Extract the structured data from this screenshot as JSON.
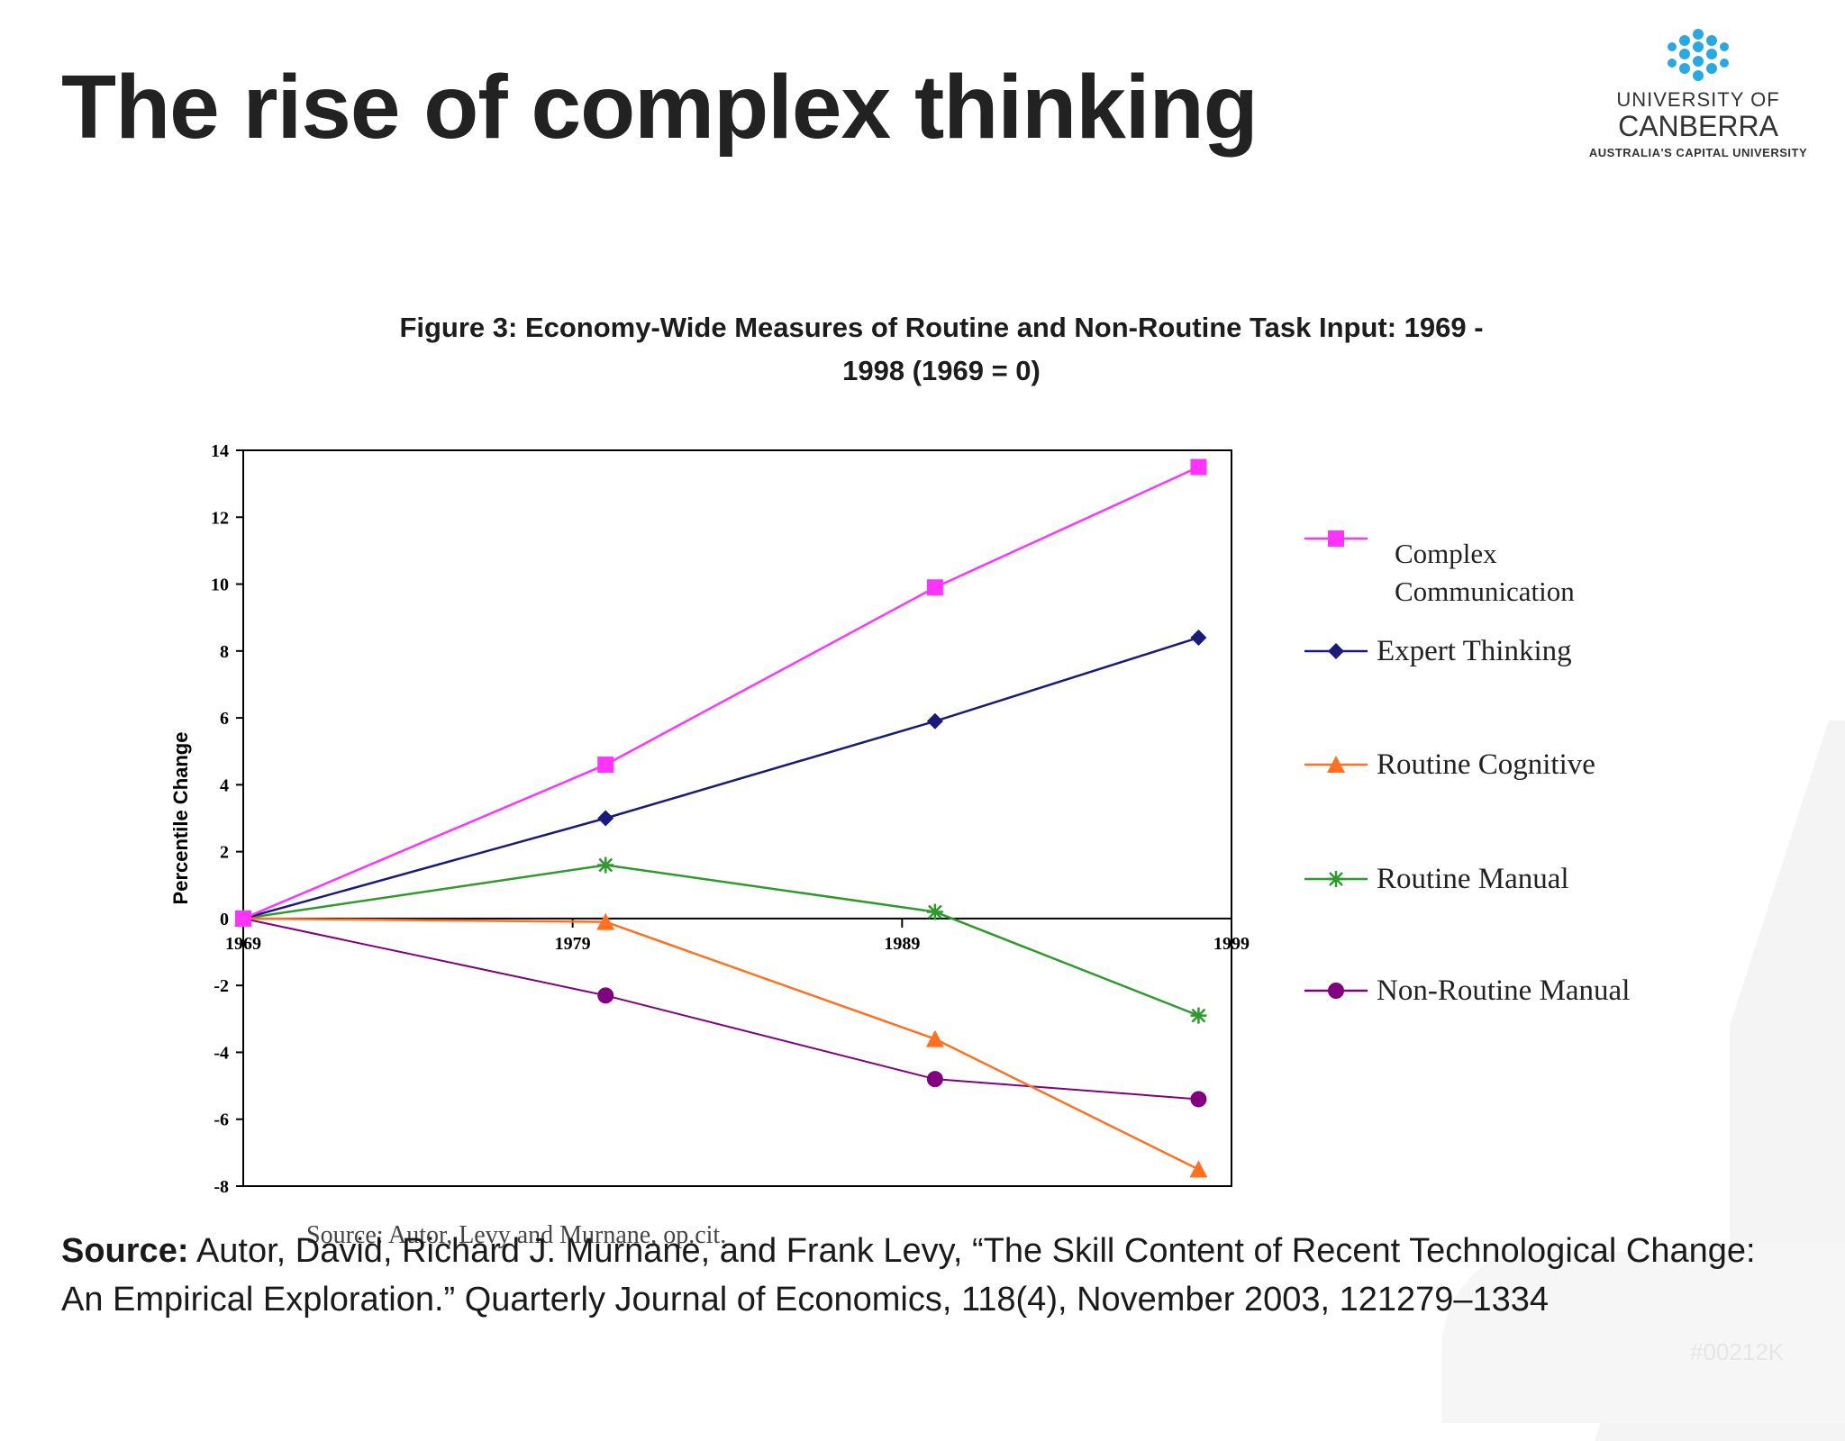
{
  "slide": {
    "title": "The rise of complex thinking",
    "watermark": "#00212K"
  },
  "logo": {
    "line1": "UNIVERSITY OF",
    "line2": "CANBERRA",
    "line3": "AUSTRALIA'S CAPITAL UNIVERSITY",
    "color": "#2aa8df"
  },
  "chart_title": {
    "line1": "Figure 3: Economy-Wide Measures of Routine and Non-Routine Task Input: 1969 -",
    "line2": "1998 (1969 = 0)"
  },
  "chart_data": {
    "type": "line",
    "x": [
      1969,
      1980,
      1990,
      1998
    ],
    "xticks": [
      "1969",
      "1979",
      "1989",
      "1999"
    ],
    "xtick_values": [
      1969,
      1979,
      1989,
      1999
    ],
    "xlim": [
      1969,
      1999
    ],
    "ylabel": "Percentile Change",
    "ylim": [
      -8,
      14
    ],
    "yticks": [
      14,
      12,
      10,
      8,
      6,
      4,
      2,
      0,
      -2,
      -4,
      -6,
      -8
    ],
    "grid": false,
    "legend_position": "right",
    "series": [
      {
        "name": "Complex Communication",
        "values": [
          0,
          4.6,
          9.9,
          13.5
        ],
        "color": "#ff33ff",
        "marker": "square"
      },
      {
        "name": "Expert Thinking",
        "values": [
          0,
          3.0,
          5.9,
          8.4
        ],
        "color": "#1a1a7a",
        "marker": "diamond"
      },
      {
        "name": "Routine Cognitive",
        "values": [
          0,
          -0.1,
          -3.6,
          -7.5
        ],
        "color": "#ff7020",
        "marker": "triangle"
      },
      {
        "name": "Routine Manual",
        "values": [
          0,
          1.6,
          0.2,
          -2.9
        ],
        "color": "#2e9a2e",
        "marker": "asterisk"
      },
      {
        "name": "Non-Routine Manual",
        "values": [
          0,
          -2.3,
          -4.8,
          -5.4
        ],
        "color": "#800080",
        "marker": "circle"
      }
    ],
    "source_note": "Source: Autor, Levy and Murnane, op.cit."
  },
  "source": {
    "label": "Source:",
    "text": " Autor, David, Richard J. Murnane, and Frank Levy, “The Skill Content of Recent Technological Change: An Empirical Exploration.” Quarterly Journal of Economics, 118(4), November 2003, 121279–1334"
  }
}
